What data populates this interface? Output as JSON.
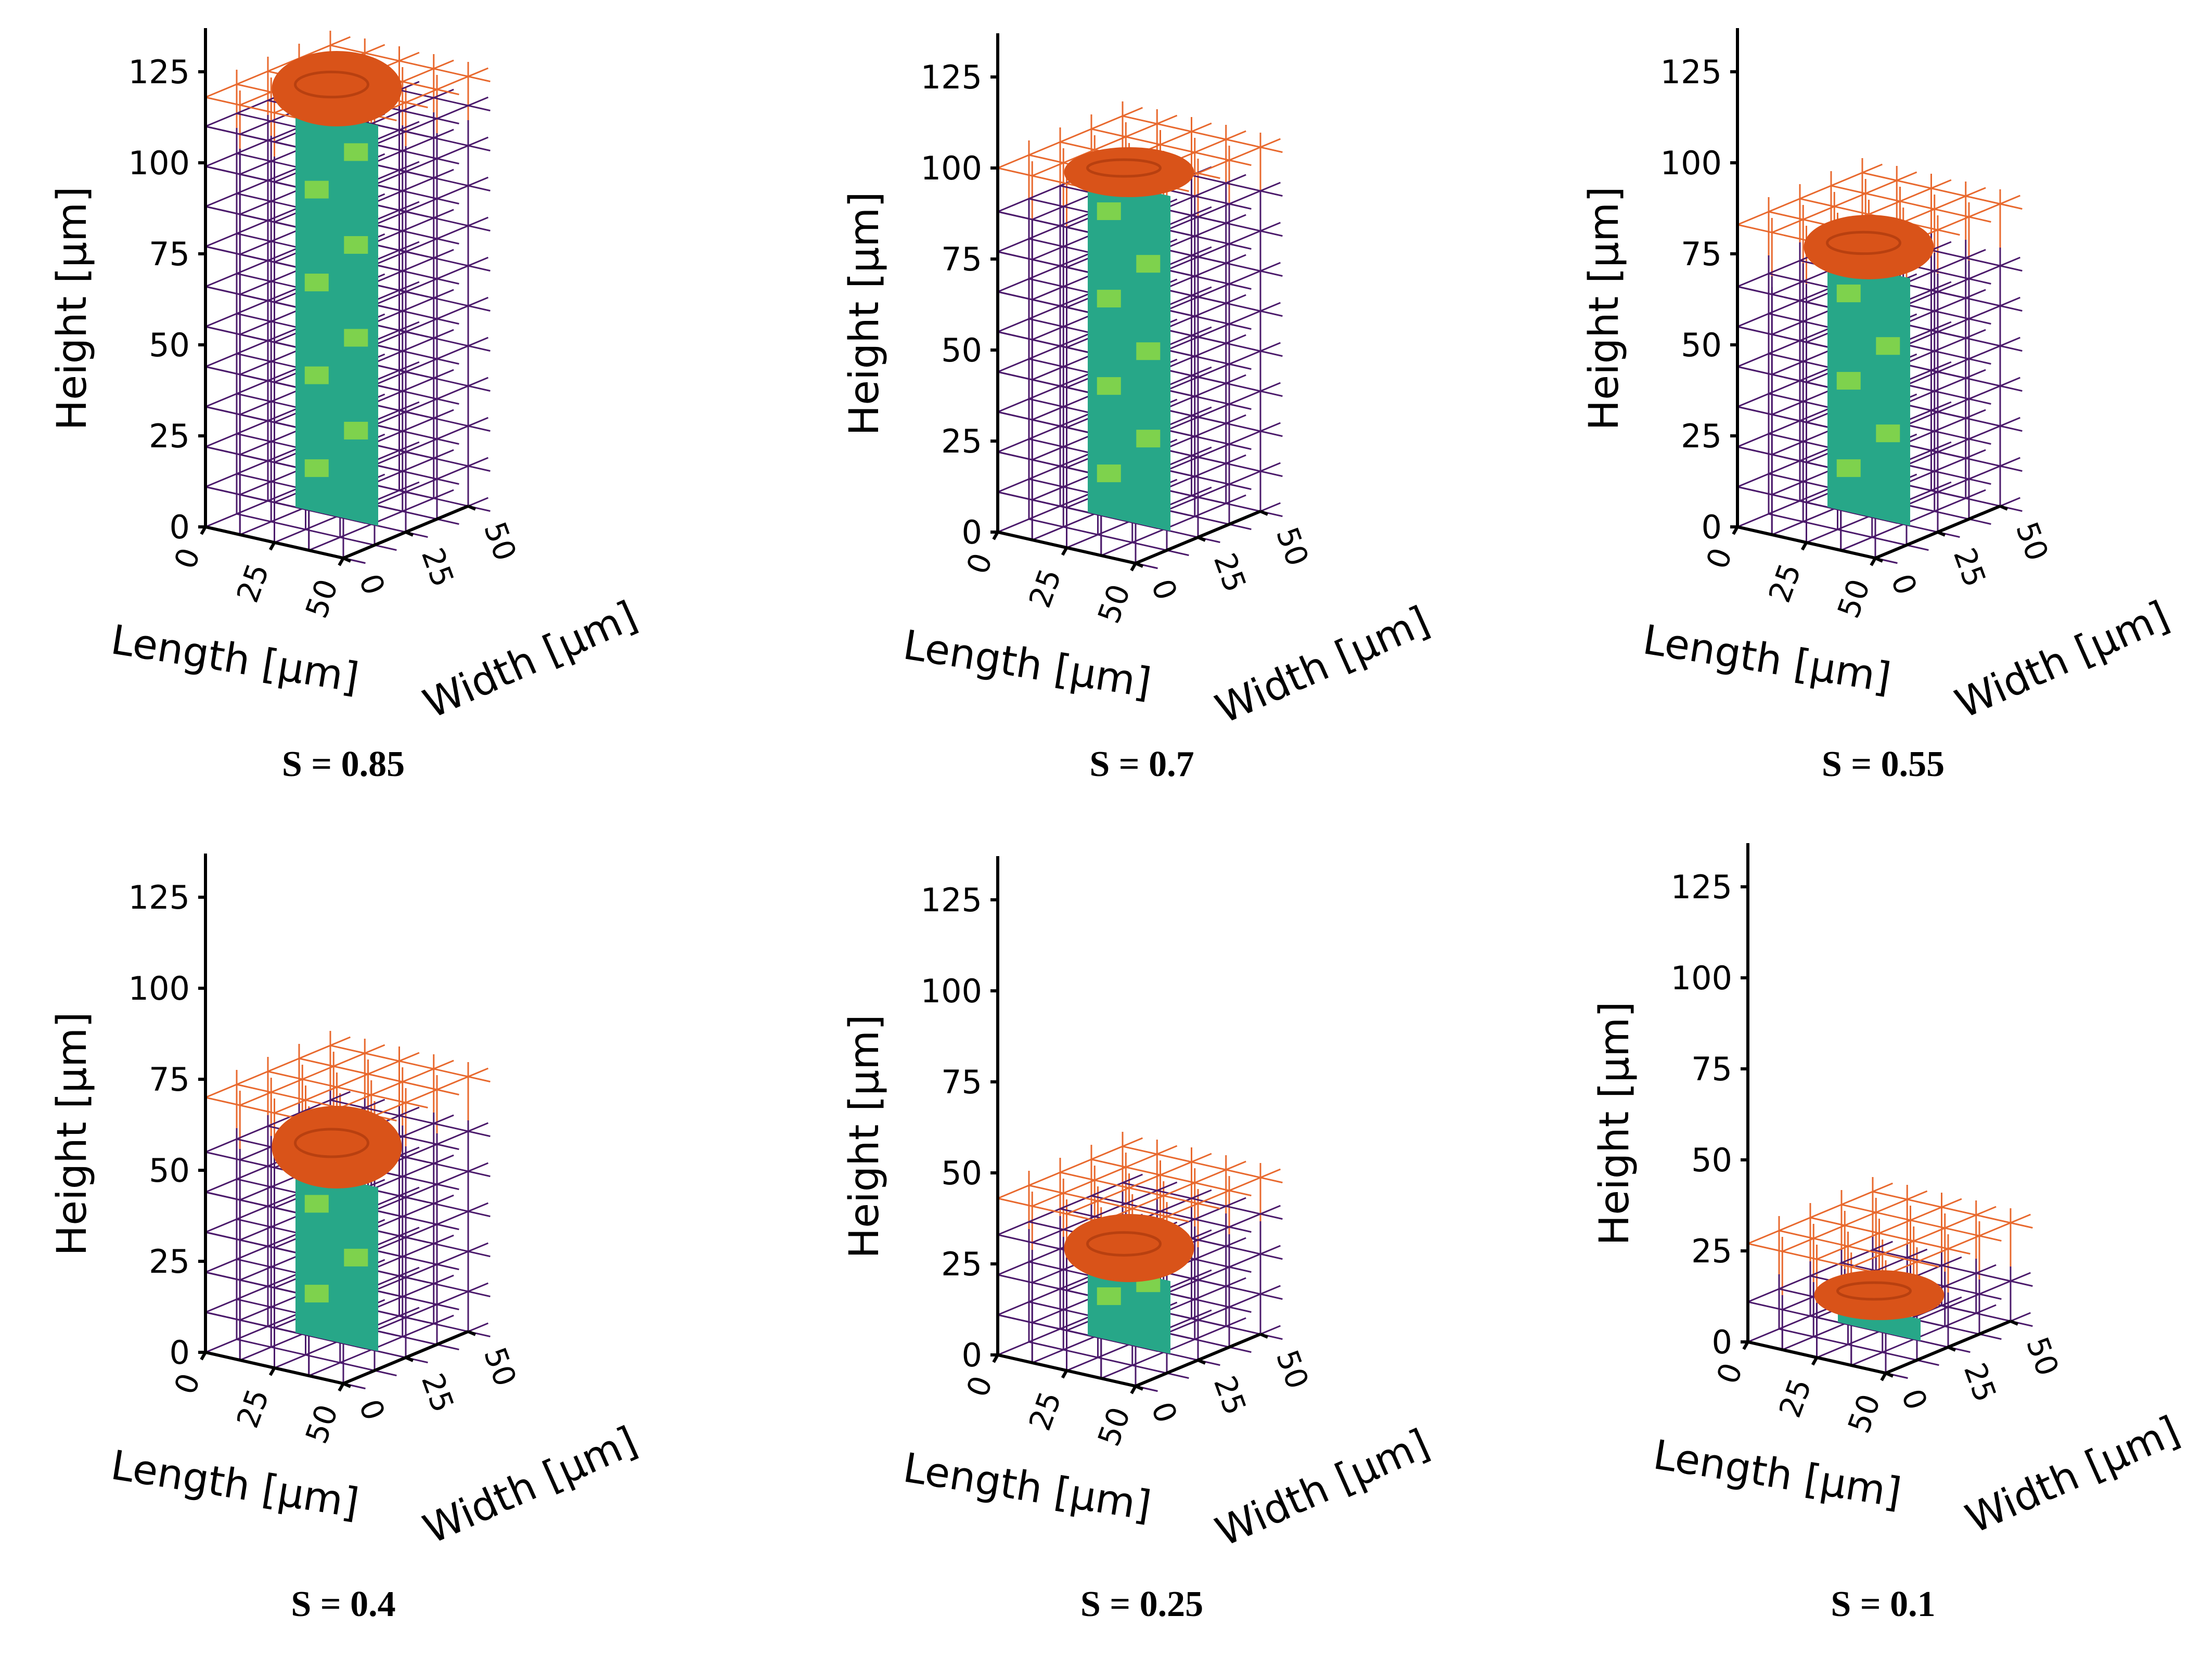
{
  "figure": {
    "colors": {
      "background": "#ffffff",
      "grid_lower": "#4b1a6b",
      "grid_upper": "#e8692e",
      "droplet": "#d95319",
      "column_dark": "#27a788",
      "column_light": "#7ed24d",
      "axis": "#000000"
    },
    "labels": {
      "height": "Height [µm]",
      "length": "Length [µm]",
      "width": "Width [µm]"
    },
    "height_ticks": [
      "0",
      "25",
      "50",
      "75",
      "100",
      "125"
    ],
    "length_ticks": [
      "0",
      "25",
      "50"
    ],
    "width_ticks": [
      "0",
      "25",
      "50"
    ],
    "panels": [
      {
        "caption": "S = 0.85"
      },
      {
        "caption": "S = 0.7"
      },
      {
        "caption": "S = 0.55"
      },
      {
        "caption": "S = 0.4"
      },
      {
        "caption": "S = 0.25"
      },
      {
        "caption": "S = 0.1"
      }
    ]
  },
  "chart_data": {
    "type": "3d-voxel",
    "x_axis": {
      "label": "Length [µm]",
      "range": [
        0,
        50
      ],
      "ticks": [
        0,
        25,
        50
      ]
    },
    "y_axis": {
      "label": "Width [µm]",
      "range": [
        0,
        50
      ],
      "ticks": [
        0,
        25,
        50
      ]
    },
    "z_axis": {
      "label": "Height [µm]",
      "range": [
        0,
        137
      ],
      "ticks": [
        0,
        25,
        50,
        75,
        100,
        125
      ]
    },
    "series": [
      {
        "name": "S = 0.85",
        "S": 0.85,
        "column_top_um": 110,
        "droplet_top_um": 125,
        "grid_top_um": 118
      },
      {
        "name": "S = 0.7",
        "S": 0.7,
        "column_top_um": 92,
        "droplet_top_um": 100,
        "grid_top_um": 100
      },
      {
        "name": "S = 0.55",
        "S": 0.55,
        "column_top_um": 68,
        "droplet_top_um": 80,
        "grid_top_um": 83
      },
      {
        "name": "S = 0.4",
        "S": 0.4,
        "column_top_um": 45,
        "droplet_top_um": 62,
        "grid_top_um": 70
      },
      {
        "name": "S = 0.25",
        "S": 0.25,
        "column_top_um": 20,
        "droplet_top_um": 33,
        "grid_top_um": 43
      },
      {
        "name": "S = 0.1",
        "S": 0.1,
        "column_top_um": 6,
        "droplet_top_um": 14,
        "grid_top_um": 27
      }
    ]
  }
}
